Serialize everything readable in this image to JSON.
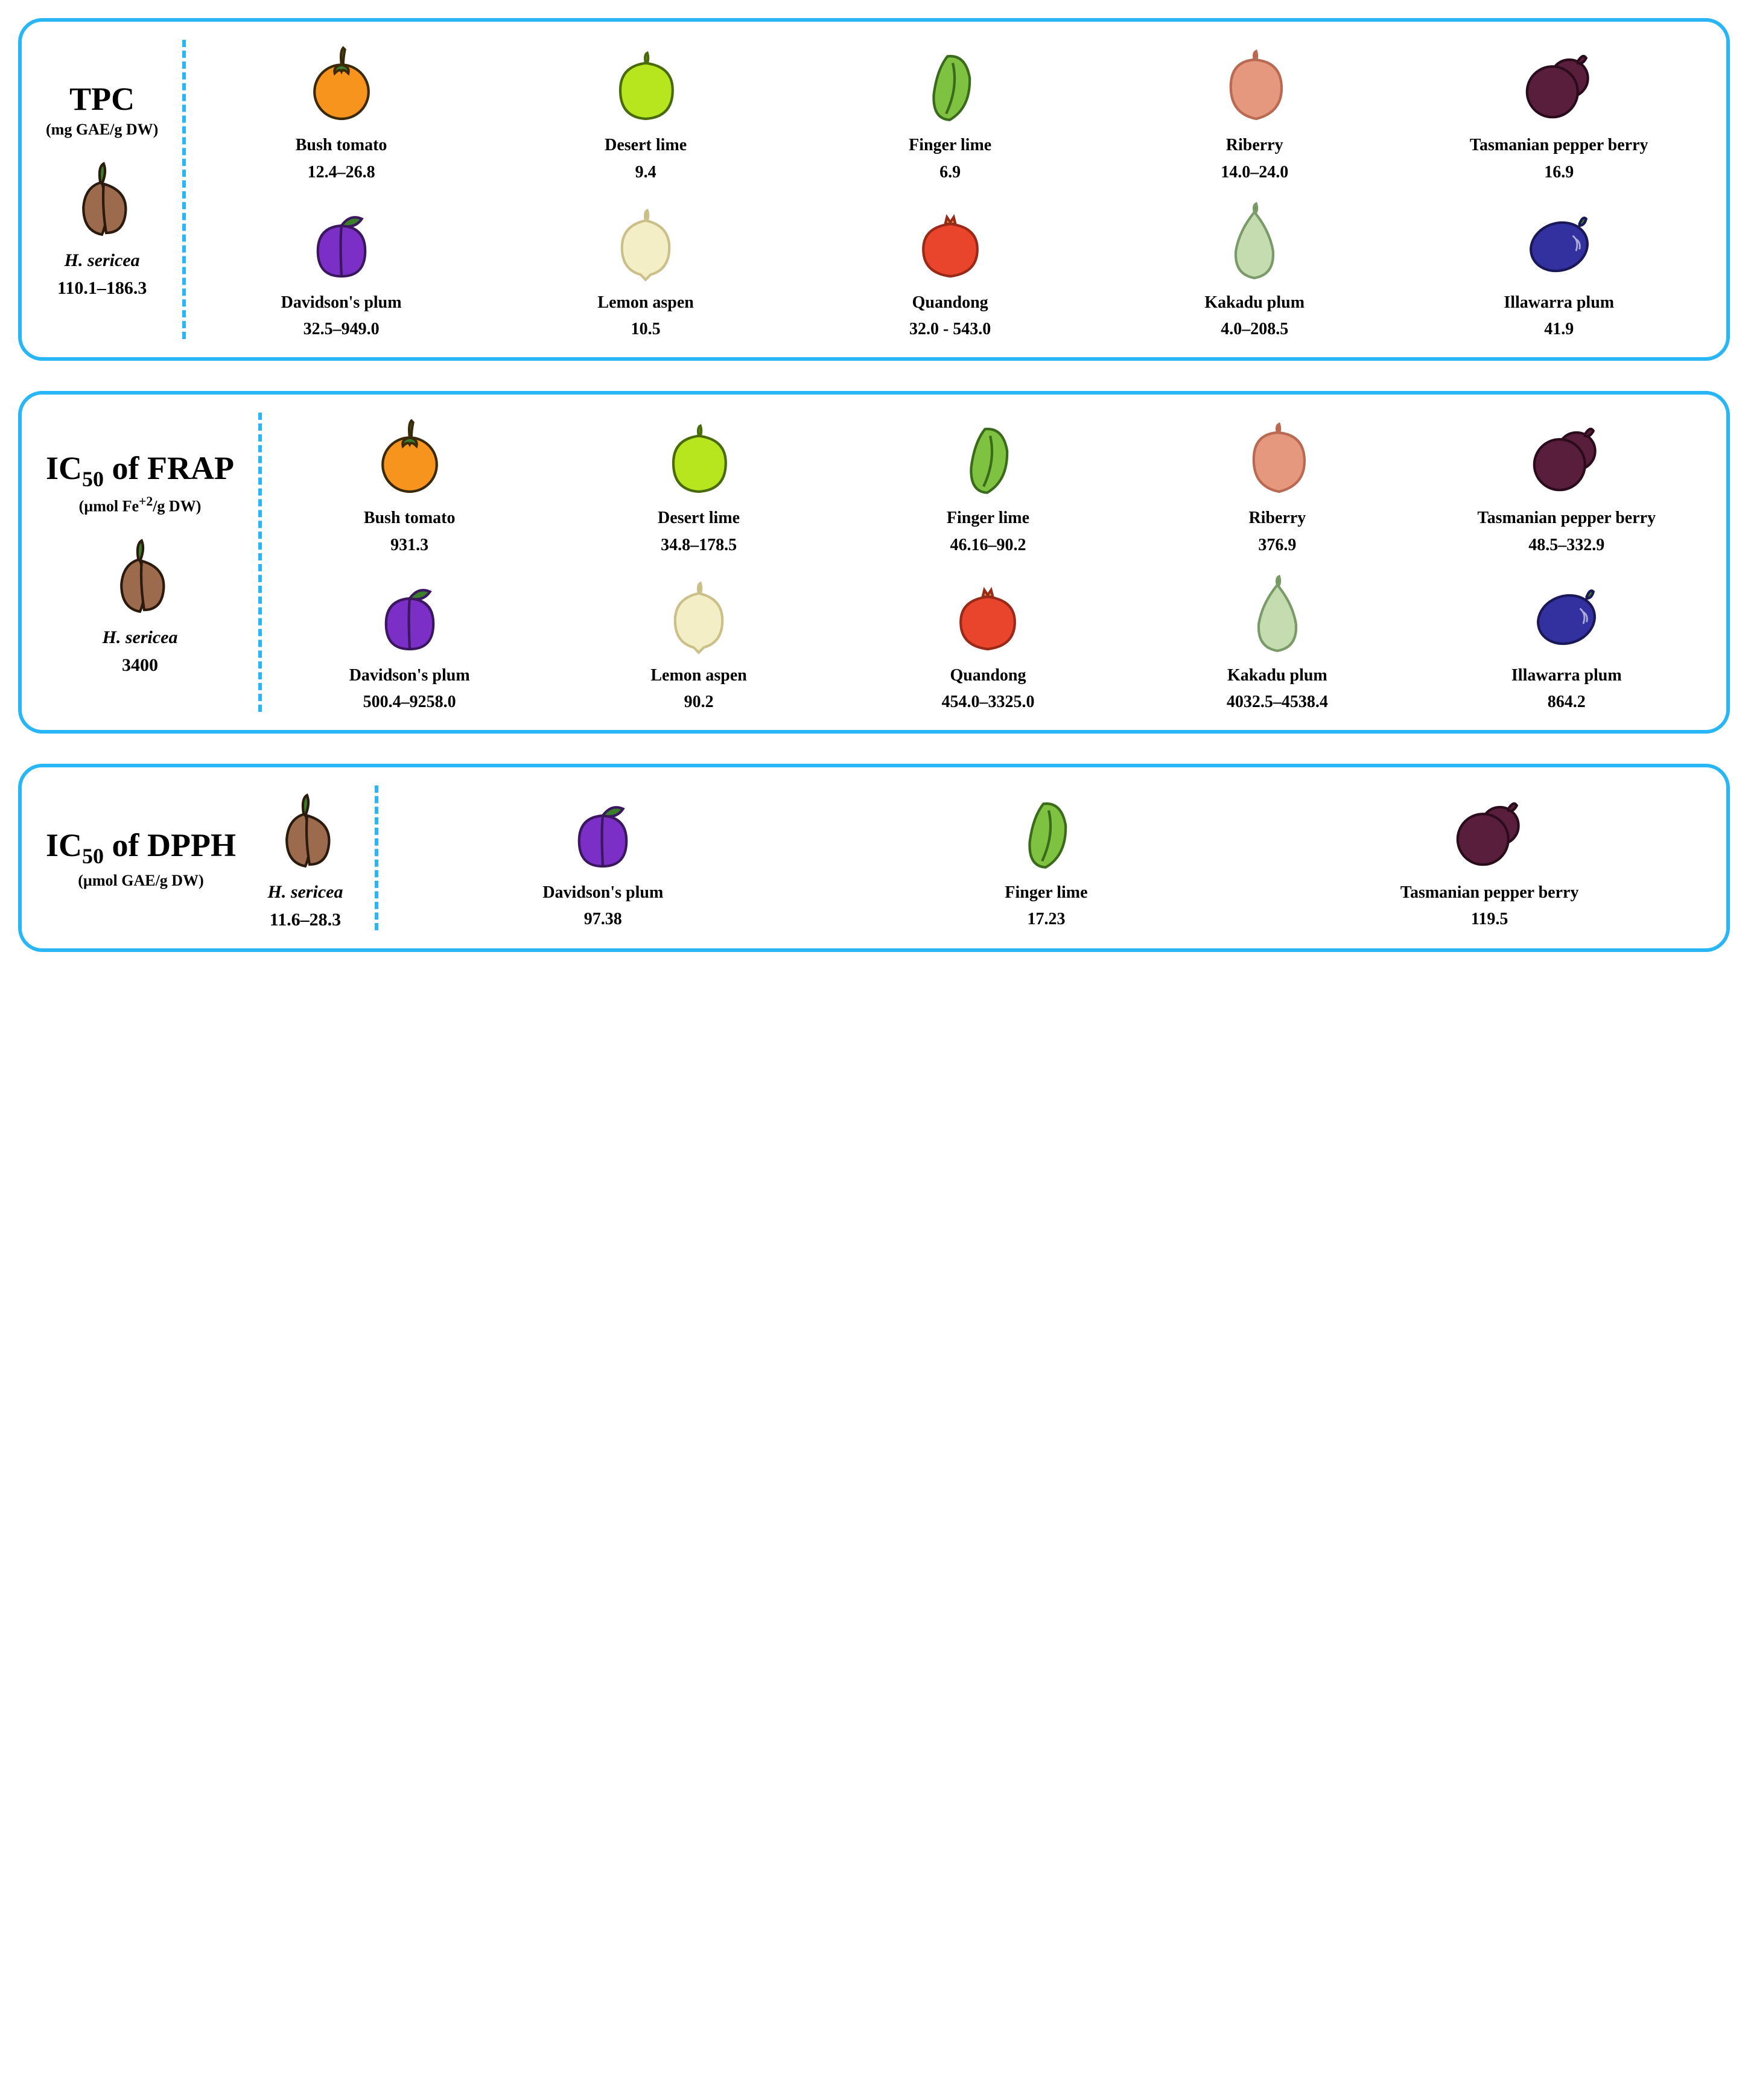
{
  "colors": {
    "panel_border": "#29b6f6",
    "divider": "#29b6f6",
    "text": "#000000",
    "background": "#ffffff"
  },
  "fruit_icons": {
    "hsericea": {
      "fill": "#9c6b4e",
      "stroke": "#2b1a0e",
      "leaf": "#3a7d2a"
    },
    "bushtomato": {
      "fill": "#f7941d",
      "stroke": "#3a2a0a",
      "leaf": "#3c7a2e"
    },
    "desertlime": {
      "fill": "#b7e61e",
      "stroke": "#4a6b0c",
      "leaf": "#6aa81a"
    },
    "fingerlime": {
      "fill": "#7fc241",
      "stroke": "#3a6b1a",
      "leaf": "#5b9a2e"
    },
    "riberry": {
      "fill": "#e5987e",
      "stroke": "#b86a52",
      "leaf": "#b85a3a"
    },
    "pepperberry": {
      "fill": "#5a1e3d",
      "stroke": "#2a0c1c",
      "leaf": "#3a7d2a"
    },
    "davidson": {
      "fill": "#7b2fc7",
      "stroke": "#3a175e",
      "leaf": "#3a7d2a"
    },
    "lemonaspen": {
      "fill": "#f4eec7",
      "stroke": "#cbbf8a",
      "leaf": "#a8c96b"
    },
    "quandong": {
      "fill": "#e8452c",
      "stroke": "#9a2a18",
      "leaf": "#c9a24a"
    },
    "kakadu": {
      "fill": "#c4dcb0",
      "stroke": "#7a9a68",
      "leaf": "#5b8c3a"
    },
    "illawarra": {
      "fill": "#33309f",
      "stroke": "#1a1858",
      "leaf": "#3a7d2a"
    }
  },
  "panels": [
    {
      "id": "tpc",
      "title_main": "TPC",
      "title_sub_html": "",
      "subtitle": "(mg GAE/g DW)",
      "reference": {
        "icon": "hsericea",
        "name": "H. sericea",
        "value": "110.1–186.3"
      },
      "fruits": [
        {
          "icon": "bushtomato",
          "name": "Bush tomato",
          "value": "12.4–26.8"
        },
        {
          "icon": "desertlime",
          "name": "Desert lime",
          "value": "9.4"
        },
        {
          "icon": "fingerlime",
          "name": "Finger lime",
          "value": "6.9"
        },
        {
          "icon": "riberry",
          "name": "Riberry",
          "value": "14.0–24.0"
        },
        {
          "icon": "pepperberry",
          "name": "Tasmanian pepper berry",
          "value": "16.9"
        },
        {
          "icon": "davidson",
          "name": "Davidson's plum",
          "value": "32.5–949.0"
        },
        {
          "icon": "lemonaspen",
          "name": "Lemon aspen",
          "value": "10.5"
        },
        {
          "icon": "quandong",
          "name": "Quandong",
          "value": "32.0 - 543.0"
        },
        {
          "icon": "kakadu",
          "name": "Kakadu plum",
          "value": "4.0–208.5"
        },
        {
          "icon": "illawarra",
          "name": "Illawarra plum",
          "value": "41.9"
        }
      ]
    },
    {
      "id": "frap",
      "title_main": "IC",
      "title_sub": "50",
      "title_after": " of FRAP",
      "subtitle_html": "(µmol Fe<sup>+2</sup>/g DW)",
      "reference": {
        "icon": "hsericea",
        "name": "H. sericea",
        "value": "3400"
      },
      "fruits": [
        {
          "icon": "bushtomato",
          "name": "Bush tomato",
          "value": "931.3"
        },
        {
          "icon": "desertlime",
          "name": "Desert lime",
          "value": "34.8–178.5"
        },
        {
          "icon": "fingerlime",
          "name": "Finger lime",
          "value": "46.16–90.2"
        },
        {
          "icon": "riberry",
          "name": "Riberry",
          "value": "376.9"
        },
        {
          "icon": "pepperberry",
          "name": "Tasmanian pepper berry",
          "value": "48.5–332.9"
        },
        {
          "icon": "davidson",
          "name": "Davidson's plum",
          "value": "500.4–9258.0"
        },
        {
          "icon": "lemonaspen",
          "name": "Lemon aspen",
          "value": "90.2"
        },
        {
          "icon": "quandong",
          "name": "Quandong",
          "value": "454.0–3325.0"
        },
        {
          "icon": "kakadu",
          "name": "Kakadu plum",
          "value": "4032.5–4538.4"
        },
        {
          "icon": "illawarra",
          "name": "Illawarra plum",
          "value": "864.2"
        }
      ]
    },
    {
      "id": "dpph",
      "title_main": "IC",
      "title_sub": "50",
      "title_after": " of DPPH",
      "subtitle": "(µmol GAE/g DW)",
      "reference": {
        "icon": "hsericea",
        "name": "H. sericea",
        "value": "11.6–28.3"
      },
      "fruits": [
        {
          "icon": "davidson",
          "name": "Davidson's plum",
          "value": "97.38"
        },
        {
          "icon": "fingerlime",
          "name": "Finger lime",
          "value": "17.23"
        },
        {
          "icon": "pepperberry",
          "name": "Tasmanian pepper berry",
          "value": "119.5"
        }
      ]
    }
  ]
}
